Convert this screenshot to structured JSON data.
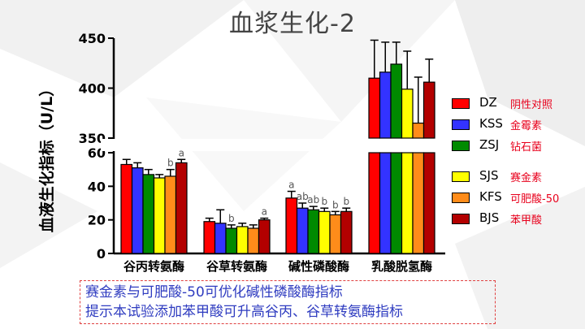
{
  "title": "血浆生化-2",
  "note": {
    "line1": "赛金素与可肥酸-50可优化碱性磷酸酶指标",
    "line2": "提示本试验添加苯甲酸可升高谷丙、谷草转氨酶指标"
  },
  "legend": [
    {
      "code": "DZ",
      "name": "阴性对照",
      "color": "#ff0000"
    },
    {
      "code": "KSS",
      "name": "金霉素",
      "color": "#3333ff"
    },
    {
      "code": "ZSJ",
      "name": "钻石菌",
      "color": "#008a00"
    },
    {
      "code": "SJS",
      "name": "赛金素",
      "color": "#ffff00"
    },
    {
      "code": "KFS",
      "name": "可肥酸-50",
      "color": "#ff8c1a"
    },
    {
      "code": "BJS",
      "name": "苯甲酸",
      "color": "#b30000"
    }
  ],
  "chart_data": {
    "type": "bar",
    "title": "血浆生化-2",
    "ylabel": "血液生化指标（U/L）",
    "axis_break": {
      "lower_ylim": [
        0,
        60
      ],
      "upper_ylim": [
        350,
        450
      ]
    },
    "lower_ticks": [
      "0",
      "20",
      "40",
      "60"
    ],
    "upper_ticks": [
      "350",
      "400",
      "450"
    ],
    "categories": [
      "谷丙转氨酶",
      "谷草转氨酶",
      "碱性磷酸酶",
      "乳酸脱氢酶"
    ],
    "series": [
      {
        "name": "DZ",
        "values": [
          53,
          19,
          33,
          410
        ],
        "errors": [
          3,
          2,
          4,
          38
        ]
      },
      {
        "name": "KSS",
        "values": [
          51,
          18,
          27,
          416
        ],
        "errors": [
          3,
          8,
          3,
          30
        ]
      },
      {
        "name": "ZSJ",
        "values": [
          47,
          15,
          26,
          424
        ],
        "errors": [
          3,
          2,
          2,
          22
        ]
      },
      {
        "name": "SJS",
        "values": [
          45,
          16,
          25,
          399
        ],
        "errors": [
          2,
          2,
          2,
          38
        ]
      },
      {
        "name": "KFS",
        "values": [
          46,
          15,
          23,
          365
        ],
        "errors": [
          4,
          2,
          2,
          46
        ]
      },
      {
        "name": "BJS",
        "values": [
          54,
          20,
          25,
          406
        ],
        "errors": [
          2,
          1,
          2,
          23
        ]
      }
    ],
    "annotations": [
      {
        "category": 0,
        "series": 4,
        "text": "b"
      },
      {
        "category": 0,
        "series": 5,
        "text": "a"
      },
      {
        "category": 1,
        "series": 2,
        "text": "b"
      },
      {
        "category": 1,
        "series": 5,
        "text": "a"
      },
      {
        "category": 2,
        "series": 0,
        "text": "a"
      },
      {
        "category": 2,
        "series": 1,
        "text": "ab"
      },
      {
        "category": 2,
        "series": 2,
        "text": "ab"
      },
      {
        "category": 2,
        "series": 3,
        "text": "b"
      },
      {
        "category": 2,
        "series": 4,
        "text": "b"
      },
      {
        "category": 2,
        "series": 5,
        "text": "b"
      }
    ]
  }
}
